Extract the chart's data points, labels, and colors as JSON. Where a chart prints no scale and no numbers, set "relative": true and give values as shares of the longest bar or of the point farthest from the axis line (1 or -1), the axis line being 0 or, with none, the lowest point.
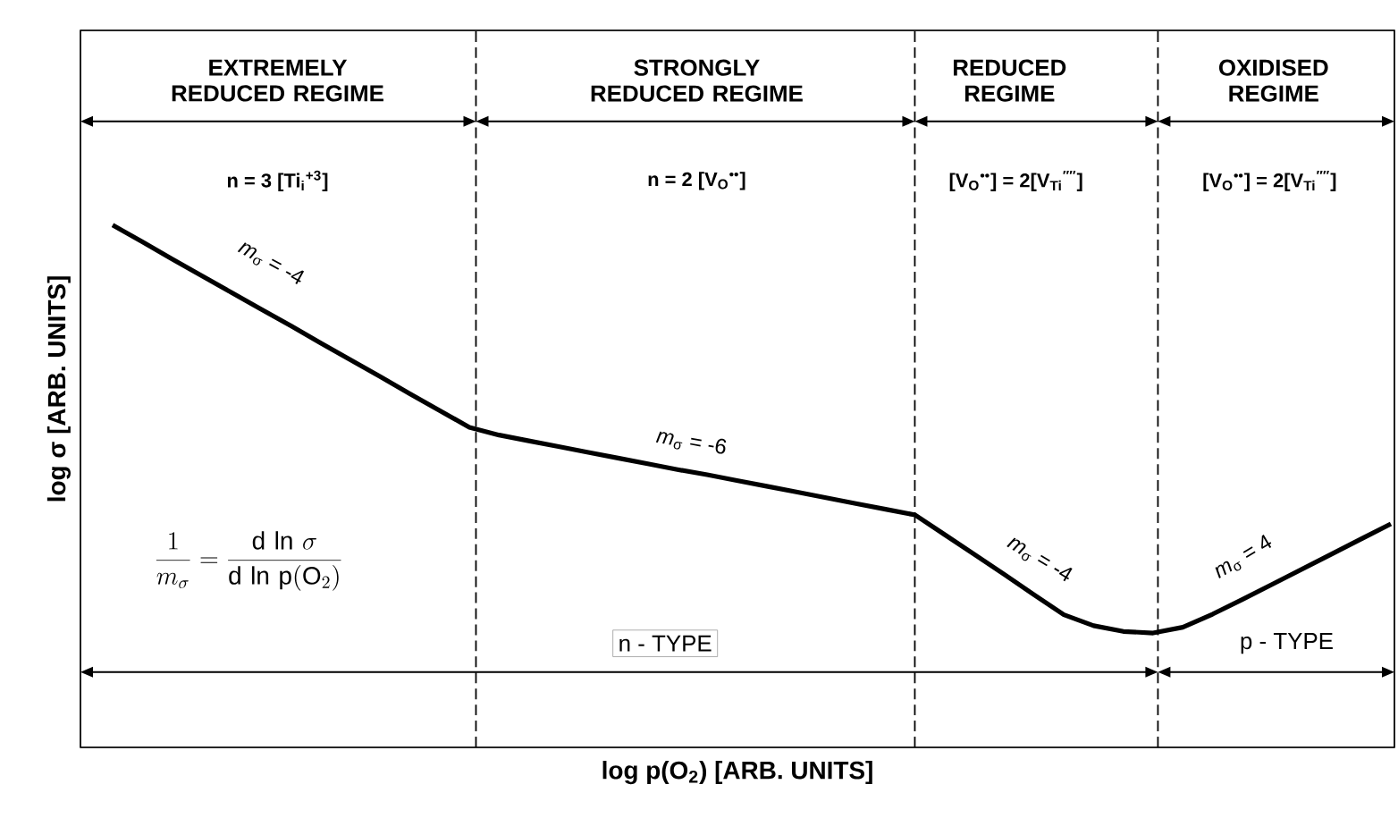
{
  "chart_data": {
    "type": "line",
    "relative": true,
    "xlabel": "log p(O$_{2}$) [ARB. UNITS]",
    "ylabel": "log  σ [ARB. UNITS]",
    "categories": [
      null,
      null,
      null,
      null,
      null,
      null,
      null,
      null,
      null,
      null,
      null,
      null,
      null,
      null,
      null,
      null,
      null,
      null,
      null,
      null,
      null,
      null,
      null,
      null,
      null,
      null,
      null,
      null,
      null,
      null,
      null,
      null,
      null,
      null,
      null,
      null,
      null,
      null,
      null,
      null,
      null,
      null,
      null,
      null
    ],
    "series": [
      {
        "color": "#000000",
        "values": [
          1.0,
          0.968,
          0.935,
          0.903,
          0.871,
          0.839,
          0.807,
          0.774,
          0.742,
          0.71,
          0.677,
          0.645,
          0.613,
          0.598,
          0.587,
          0.576,
          0.565,
          0.554,
          0.543,
          0.532,
          0.522,
          0.511,
          0.5,
          0.489,
          0.478,
          0.467,
          0.456,
          0.445,
          0.407,
          0.369,
          0.331,
          0.292,
          0.254,
          0.233,
          0.222,
          0.219,
          0.23,
          0.255,
          0.283,
          0.312,
          0.341,
          0.37,
          0.399,
          0.428
        ]
      }
    ],
    "annotations": [
      "EXTREMELY REDUCED REGIME",
      "STRONGLY REDUCED REGIME",
      "REDUCED REGIME",
      "OXIDISED REGIME",
      "n = 3 [Ti$_{i}$$^{+3}$]",
      "n = 2 [V$_{O}$$^{••}$]",
      "[V$_{O}$$^{••}$] = 2[V$_{Ti}$$^{′′′′}$]",
      "[V$_{O}$$^{••}$] = 2[V$_{Ti}$$^{′′′′}$]",
      "*m*$_{σ}$ = -4",
      "*m*$_{σ}$ = -6",
      "*m*$_{σ}$ = -4",
      "*m*$_{σ}$ = 4",
      "\\frac{1}{m_\\sigma}=\\frac{\\mathrm{d}\\,\\ln\\,\\sigma}{\\mathrm{d}\\,\\ln\\,\\mathrm{p}(\\mathrm{O}_2)}",
      "n - TYPE",
      "p - TYPE"
    ]
  }
}
